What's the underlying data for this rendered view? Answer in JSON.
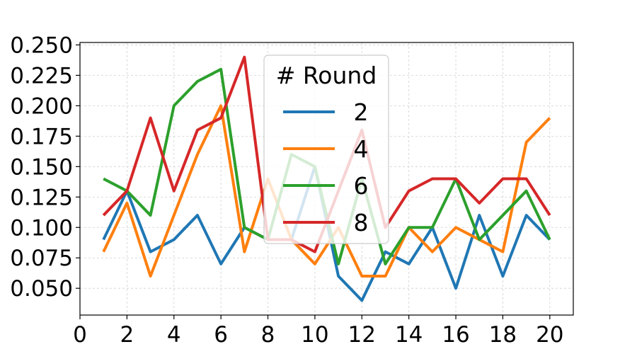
{
  "chart_data": {
    "type": "line",
    "x": [
      1,
      2,
      3,
      4,
      5,
      6,
      7,
      8,
      9,
      10,
      11,
      12,
      13,
      14,
      15,
      16,
      17,
      18,
      19,
      20
    ],
    "xlim": [
      0,
      21
    ],
    "ylim": [
      0.028,
      0.252
    ],
    "xticks": [
      0,
      2,
      4,
      6,
      8,
      10,
      12,
      14,
      16,
      18,
      20
    ],
    "yticks": [
      0.05,
      0.075,
      0.1,
      0.125,
      0.15,
      0.175,
      0.2,
      0.225,
      0.25
    ],
    "xtick_labels": [
      "0",
      "2",
      "4",
      "6",
      "8",
      "10",
      "12",
      "14",
      "16",
      "18",
      "20"
    ],
    "ytick_labels": [
      "0.050",
      "0.075",
      "0.100",
      "0.125",
      "0.150",
      "0.175",
      "0.200",
      "0.225",
      "0.250"
    ],
    "title": "",
    "xlabel": "",
    "ylabel": "",
    "grid": true,
    "legend": {
      "title": "# Round",
      "position": "upper-center"
    },
    "series": [
      {
        "name": "2",
        "color": "#1f77b4",
        "values": [
          0.09,
          0.13,
          0.08,
          0.09,
          0.11,
          0.07,
          0.1,
          0.09,
          0.09,
          0.15,
          0.06,
          0.04,
          0.08,
          0.07,
          0.1,
          0.05,
          0.11,
          0.06,
          0.11,
          0.09
        ]
      },
      {
        "name": "4",
        "color": "#ff7f0e",
        "values": [
          0.08,
          0.12,
          0.06,
          0.11,
          0.16,
          0.2,
          0.08,
          0.14,
          0.09,
          0.07,
          0.1,
          0.06,
          0.06,
          0.1,
          0.08,
          0.1,
          0.09,
          0.08,
          0.17,
          0.19
        ]
      },
      {
        "name": "6",
        "color": "#2ca02c",
        "values": [
          0.14,
          0.13,
          0.11,
          0.2,
          0.22,
          0.23,
          0.1,
          0.09,
          0.16,
          0.15,
          0.07,
          0.14,
          0.07,
          0.1,
          0.1,
          0.14,
          0.09,
          0.11,
          0.13,
          0.09
        ]
      },
      {
        "name": "8",
        "color": "#d62728",
        "values": [
          0.11,
          0.13,
          0.19,
          0.13,
          0.18,
          0.19,
          0.24,
          0.09,
          0.09,
          0.08,
          0.13,
          0.18,
          0.1,
          0.13,
          0.14,
          0.14,
          0.12,
          0.14,
          0.14,
          0.11
        ]
      }
    ]
  }
}
